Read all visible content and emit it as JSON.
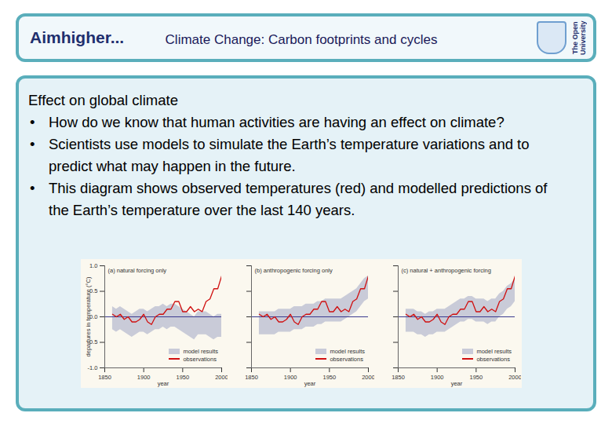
{
  "header": {
    "logo": "Aimhigher...",
    "title": "Climate Change: Carbon footprints and cycles",
    "logo_right": "The Open University"
  },
  "heading": "Effect on global climate",
  "bullets": [
    "How do we know that human activities are having an effect on climate?",
    "Scientists use models to simulate the Earth’s temperature variations and to predict what may happen in the future.",
    "This diagram shows observed temperatures (red) and modelled predictions of the Earth’s temperature over the last 140 years."
  ],
  "chart_data": [
    {
      "type": "line",
      "title": "(a) natural forcing only",
      "x_label": "year",
      "y_label": "departures in temperature (°C)",
      "x": [
        1860,
        1865,
        1870,
        1875,
        1880,
        1885,
        1890,
        1895,
        1900,
        1905,
        1910,
        1915,
        1920,
        1925,
        1930,
        1935,
        1940,
        1945,
        1950,
        1955,
        1960,
        1965,
        1970,
        1975,
        1980,
        1985,
        1990,
        1995,
        2000
      ],
      "xlim": [
        1850,
        2000
      ],
      "xticks": [
        1850,
        1900,
        1950,
        2000
      ],
      "ylim": [
        -1,
        1
      ],
      "yticks": [
        {
          "value": -1,
          "label": "-1.0"
        },
        {
          "value": -0.5,
          "label": "-0.5"
        },
        {
          "value": 0,
          "label": "0.0"
        },
        {
          "value": 0.5,
          "label": "0.5"
        },
        {
          "value": 1,
          "label": "1.0"
        }
      ],
      "reference_line": 0,
      "legend": "bottom right",
      "series": [
        {
          "name": "model results",
          "type": "area",
          "color": "#c9cbd8",
          "lower": [
            -0.25,
            -0.3,
            -0.25,
            -0.3,
            -0.35,
            -0.4,
            -0.35,
            -0.3,
            -0.3,
            -0.35,
            -0.3,
            -0.25,
            -0.25,
            -0.2,
            -0.25,
            -0.2,
            -0.2,
            -0.25,
            -0.3,
            -0.35,
            -0.4,
            -0.45,
            -0.35,
            -0.35,
            -0.35,
            -0.4,
            -0.45,
            -0.4,
            -0.4
          ],
          "upper": [
            0.2,
            0.15,
            0.2,
            0.15,
            0.1,
            0.05,
            0.1,
            0.15,
            0.15,
            0.1,
            0.15,
            0.2,
            0.2,
            0.25,
            0.2,
            0.25,
            0.25,
            0.2,
            0.15,
            0.1,
            0.05,
            0.0,
            0.1,
            0.1,
            0.1,
            0.05,
            0.0,
            0.05,
            0.05
          ]
        },
        {
          "name": "observations",
          "type": "line",
          "color": "#d01010",
          "values": [
            0.05,
            0.0,
            0.05,
            -0.05,
            0.0,
            -0.1,
            -0.1,
            -0.05,
            0.05,
            -0.1,
            -0.15,
            0.0,
            0.05,
            0.05,
            0.15,
            0.15,
            0.3,
            0.3,
            0.1,
            0.1,
            0.2,
            0.1,
            0.15,
            0.1,
            0.3,
            0.35,
            0.55,
            0.55,
            0.8
          ]
        }
      ]
    },
    {
      "type": "line",
      "title": "(b) anthropogenic forcing only",
      "x_label": "year",
      "tick_labels": "x",
      "x": [
        1860,
        1865,
        1870,
        1875,
        1880,
        1885,
        1890,
        1895,
        1900,
        1905,
        1910,
        1915,
        1920,
        1925,
        1930,
        1935,
        1940,
        1945,
        1950,
        1955,
        1960,
        1965,
        1970,
        1975,
        1980,
        1985,
        1990,
        1995,
        2000
      ],
      "xlim": [
        1850,
        2000
      ],
      "xticks": [
        1850,
        1900,
        1950,
        2000
      ],
      "ylim": [
        -1,
        1
      ],
      "yticks": [
        -1,
        -0.5,
        0,
        0.5,
        1
      ],
      "reference_line": 0,
      "legend": "bottom right",
      "series": [
        {
          "name": "model results",
          "type": "area",
          "color": "#c9cbd8",
          "lower": [
            -0.35,
            -0.35,
            -0.35,
            -0.35,
            -0.35,
            -0.3,
            -0.3,
            -0.3,
            -0.3,
            -0.25,
            -0.25,
            -0.25,
            -0.2,
            -0.2,
            -0.2,
            -0.15,
            -0.15,
            -0.1,
            -0.1,
            -0.1,
            -0.1,
            -0.1,
            -0.05,
            0.0,
            0.05,
            0.1,
            0.2,
            0.3,
            0.35
          ],
          "upper": [
            0.1,
            0.1,
            0.1,
            0.1,
            0.1,
            0.15,
            0.15,
            0.15,
            0.15,
            0.2,
            0.2,
            0.2,
            0.25,
            0.25,
            0.25,
            0.3,
            0.3,
            0.35,
            0.35,
            0.35,
            0.35,
            0.35,
            0.4,
            0.45,
            0.5,
            0.55,
            0.65,
            0.75,
            0.8
          ]
        },
        {
          "name": "observations",
          "type": "line",
          "color": "#d01010",
          "values": [
            0.05,
            0.0,
            0.05,
            -0.05,
            0.0,
            -0.1,
            -0.1,
            -0.05,
            0.05,
            -0.1,
            -0.15,
            0.0,
            0.05,
            0.05,
            0.15,
            0.15,
            0.3,
            0.3,
            0.1,
            0.1,
            0.2,
            0.1,
            0.15,
            0.1,
            0.3,
            0.35,
            0.55,
            0.55,
            0.8
          ]
        }
      ]
    },
    {
      "type": "line",
      "title": "(c) natural + anthropogenic forcing",
      "x_label": "year",
      "tick_labels": "x",
      "x": [
        1860,
        1865,
        1870,
        1875,
        1880,
        1885,
        1890,
        1895,
        1900,
        1905,
        1910,
        1915,
        1920,
        1925,
        1930,
        1935,
        1940,
        1945,
        1950,
        1955,
        1960,
        1965,
        1970,
        1975,
        1980,
        1985,
        1990,
        1995,
        2000
      ],
      "xlim": [
        1850,
        2000
      ],
      "xticks": [
        1850,
        1900,
        1950,
        2000
      ],
      "ylim": [
        -1,
        1
      ],
      "yticks": [
        -1,
        -0.5,
        0,
        0.5,
        1
      ],
      "reference_line": 0,
      "legend": "bottom right",
      "series": [
        {
          "name": "model results",
          "type": "area",
          "color": "#c9cbd8",
          "lower": [
            -0.3,
            -0.3,
            -0.3,
            -0.35,
            -0.35,
            -0.4,
            -0.35,
            -0.35,
            -0.3,
            -0.3,
            -0.3,
            -0.25,
            -0.2,
            -0.15,
            -0.1,
            -0.1,
            -0.05,
            -0.05,
            -0.1,
            -0.1,
            -0.1,
            -0.15,
            -0.1,
            -0.1,
            0.0,
            0.05,
            0.15,
            0.2,
            0.3
          ],
          "upper": [
            0.15,
            0.15,
            0.15,
            0.1,
            0.1,
            0.05,
            0.1,
            0.1,
            0.15,
            0.15,
            0.15,
            0.2,
            0.25,
            0.3,
            0.35,
            0.35,
            0.4,
            0.4,
            0.35,
            0.35,
            0.35,
            0.3,
            0.35,
            0.35,
            0.45,
            0.5,
            0.6,
            0.65,
            0.75
          ]
        },
        {
          "name": "observations",
          "type": "line",
          "color": "#d01010",
          "values": [
            0.05,
            0.0,
            0.05,
            -0.05,
            0.0,
            -0.1,
            -0.1,
            -0.05,
            0.05,
            -0.1,
            -0.15,
            0.0,
            0.05,
            0.05,
            0.15,
            0.15,
            0.3,
            0.3,
            0.1,
            0.1,
            0.2,
            0.1,
            0.15,
            0.1,
            0.3,
            0.35,
            0.55,
            0.55,
            0.8
          ]
        }
      ]
    }
  ]
}
